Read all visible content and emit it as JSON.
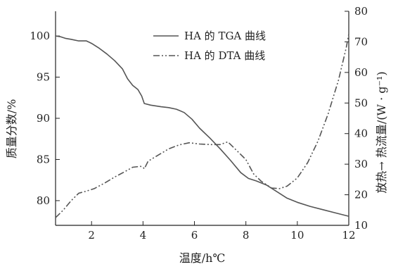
{
  "chart_data": {
    "type": "line",
    "xlabel": "温度/h℃",
    "ylabel_left": "质量分数/%",
    "ylabel_right": "放热→  热流量/(W · g⁻¹)",
    "xlim": [
      0.6,
      12
    ],
    "ylim_left": [
      77,
      103
    ],
    "ylim_right": [
      10,
      80
    ],
    "x_ticks": [
      2,
      4,
      6,
      8,
      10,
      12
    ],
    "y_ticks_left": [
      80,
      85,
      90,
      95,
      100
    ],
    "y_ticks_right": [
      10,
      20,
      30,
      40,
      50,
      60,
      70,
      80
    ],
    "grid": false,
    "legend_position": "top-center",
    "series": [
      {
        "name": "HA 的 TGA 曲线",
        "axis": "left",
        "style": "solid",
        "color": "#555555",
        "points": [
          [
            0.6,
            100.0
          ],
          [
            0.8,
            99.9
          ],
          [
            1.0,
            99.7
          ],
          [
            1.2,
            99.6
          ],
          [
            1.5,
            99.4
          ],
          [
            1.8,
            99.4
          ],
          [
            2.0,
            99.1
          ],
          [
            2.3,
            98.5
          ],
          [
            2.6,
            97.8
          ],
          [
            2.9,
            97.0
          ],
          [
            3.2,
            96.0
          ],
          [
            3.4,
            94.8
          ],
          [
            3.6,
            94.0
          ],
          [
            3.8,
            93.5
          ],
          [
            3.95,
            92.7
          ],
          [
            4.05,
            91.8
          ],
          [
            4.3,
            91.6
          ],
          [
            4.7,
            91.4
          ],
          [
            5.0,
            91.3
          ],
          [
            5.3,
            91.1
          ],
          [
            5.6,
            90.7
          ],
          [
            5.9,
            89.9
          ],
          [
            6.2,
            88.8
          ],
          [
            6.6,
            87.6
          ],
          [
            7.0,
            86.3
          ],
          [
            7.4,
            84.9
          ],
          [
            7.8,
            83.4
          ],
          [
            8.1,
            82.7
          ],
          [
            8.4,
            82.4
          ],
          [
            8.8,
            81.9
          ],
          [
            9.2,
            81.1
          ],
          [
            9.6,
            80.3
          ],
          [
            10.0,
            79.8
          ],
          [
            10.5,
            79.3
          ],
          [
            11.0,
            78.9
          ],
          [
            11.5,
            78.5
          ],
          [
            12.0,
            78.1
          ]
        ]
      },
      {
        "name": "HA 的 DTA 曲线",
        "axis": "right",
        "style": "dash-dot",
        "color": "#555555",
        "points": [
          [
            0.6,
            12.5
          ],
          [
            0.9,
            15.0
          ],
          [
            1.2,
            18.0
          ],
          [
            1.5,
            20.5
          ],
          [
            1.8,
            21.2
          ],
          [
            2.1,
            22.0
          ],
          [
            2.5,
            23.8
          ],
          [
            2.9,
            25.8
          ],
          [
            3.3,
            27.6
          ],
          [
            3.6,
            29.0
          ],
          [
            3.9,
            29.3
          ],
          [
            4.0,
            29.0
          ],
          [
            4.05,
            28.5
          ],
          [
            4.2,
            31.0
          ],
          [
            4.6,
            33.0
          ],
          [
            5.0,
            35.0
          ],
          [
            5.4,
            36.3
          ],
          [
            5.8,
            37.0
          ],
          [
            6.2,
            36.6
          ],
          [
            6.6,
            36.4
          ],
          [
            7.0,
            36.4
          ],
          [
            7.3,
            37.3
          ],
          [
            7.6,
            34.8
          ],
          [
            8.0,
            31.5
          ],
          [
            8.3,
            26.8
          ],
          [
            8.6,
            24.4
          ],
          [
            9.0,
            22.2
          ],
          [
            9.3,
            22.0
          ],
          [
            9.6,
            22.8
          ],
          [
            10.0,
            25.5
          ],
          [
            10.4,
            30.5
          ],
          [
            10.8,
            37.5
          ],
          [
            11.2,
            46.5
          ],
          [
            11.6,
            57.5
          ],
          [
            11.9,
            68.0
          ],
          [
            12.0,
            72.5
          ]
        ]
      }
    ]
  }
}
